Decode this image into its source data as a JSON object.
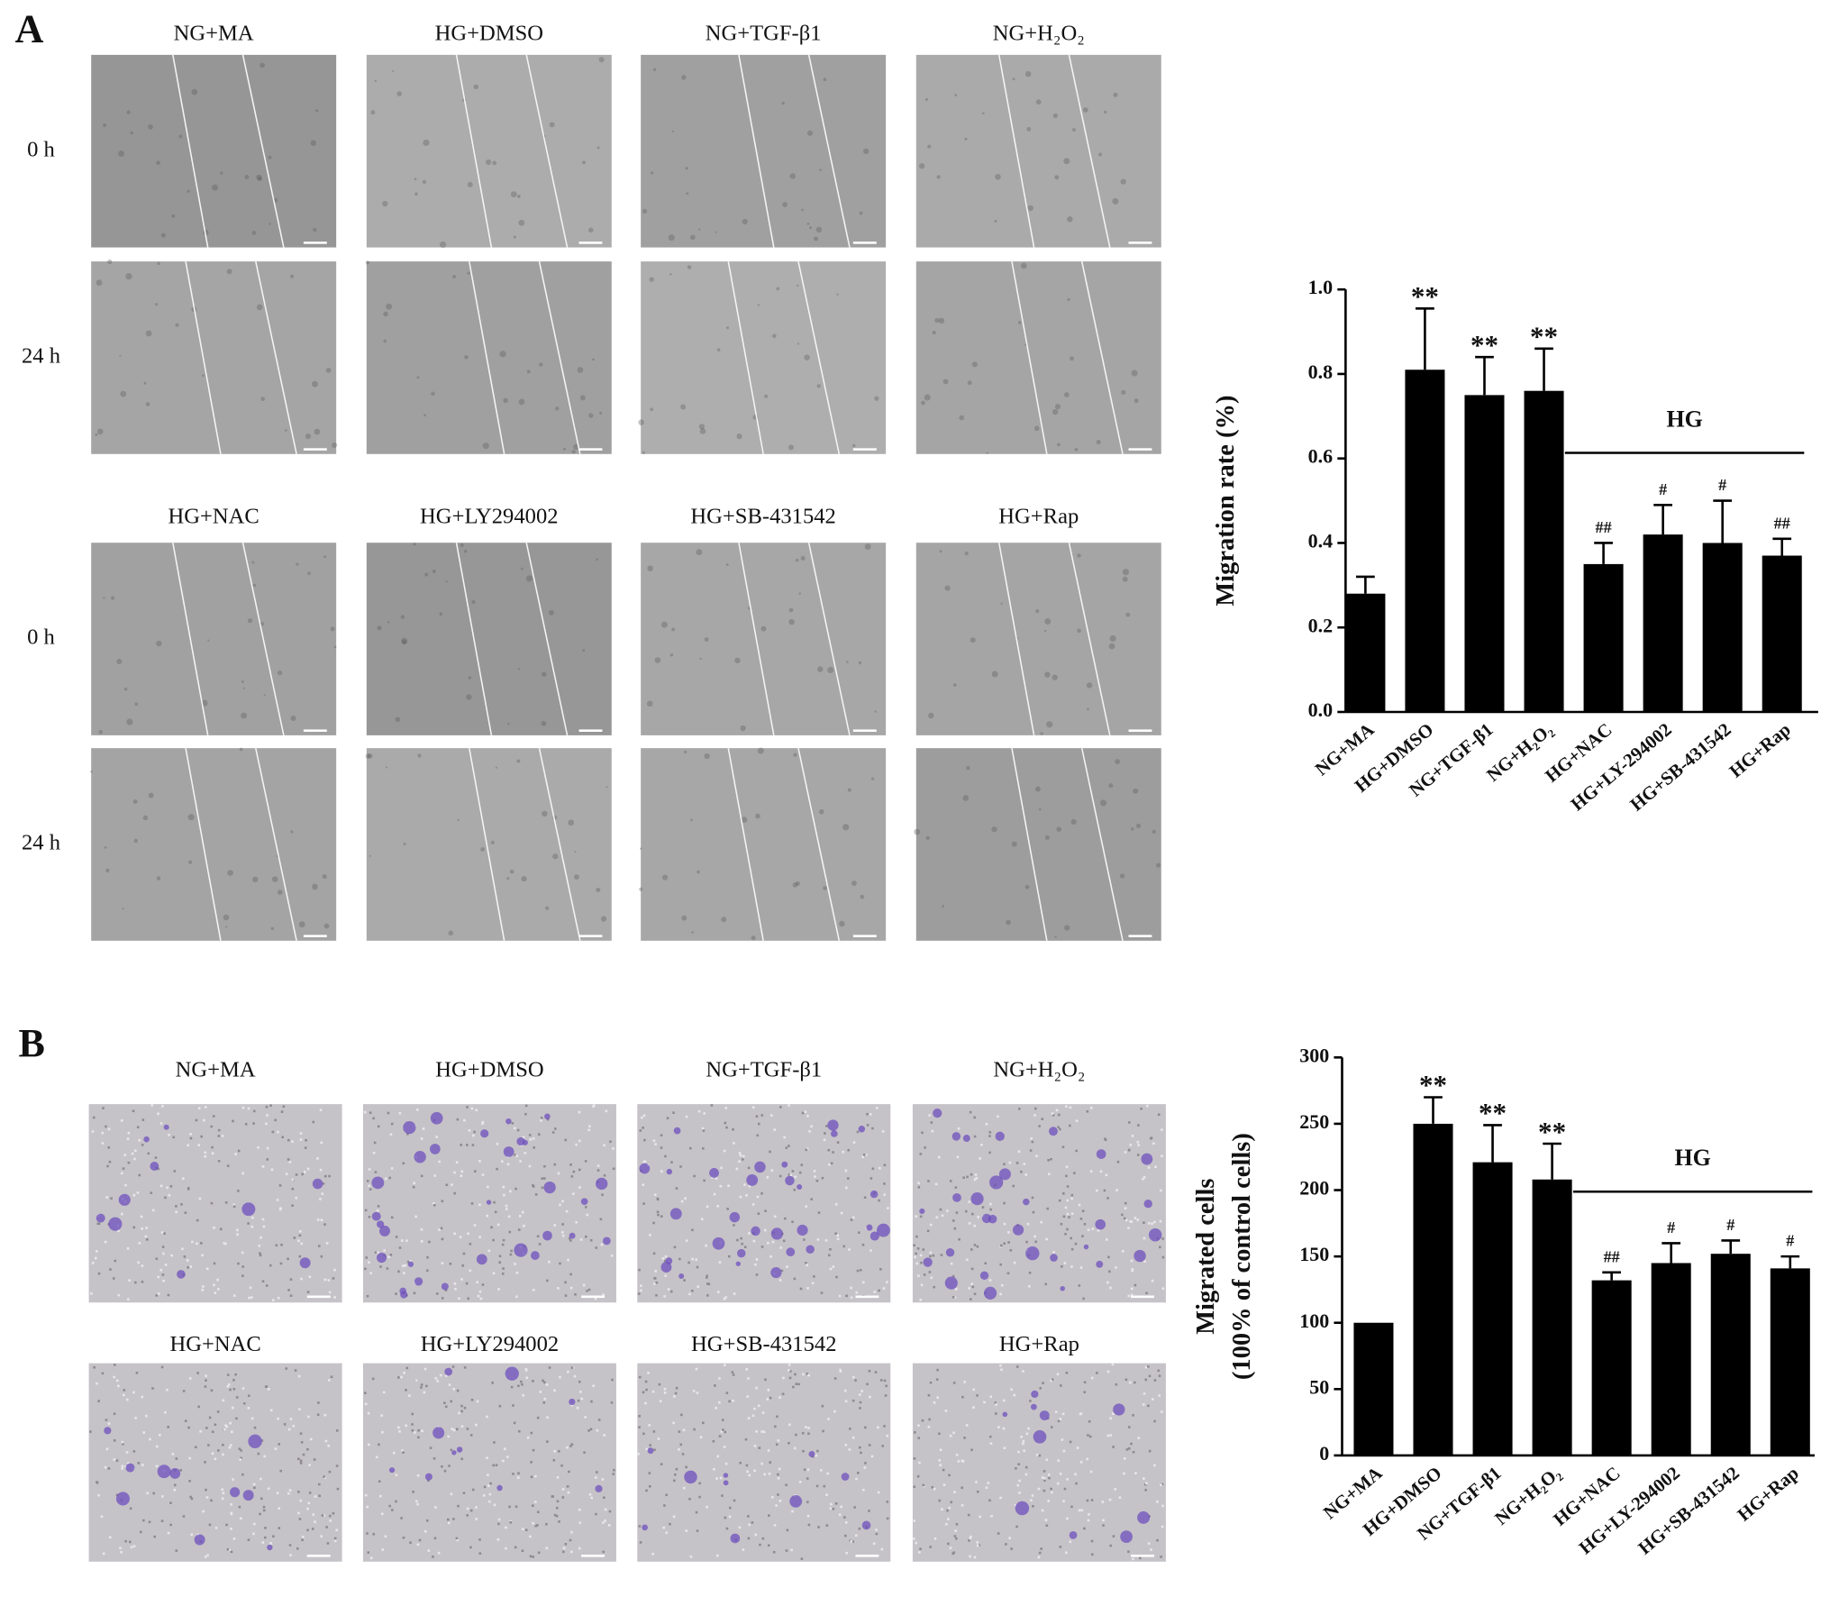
{
  "panel_a": {
    "label": "A",
    "blocks": [
      {
        "columns": [
          "NG+MA",
          "HG+DMSO",
          "NG+TGF-β1",
          "NG+H₂O₂"
        ],
        "rows": [
          "0 h",
          "24 h"
        ]
      },
      {
        "columns": [
          "HG+NAC",
          "HG+LY294002",
          "HG+SB-431542",
          "HG+Rap"
        ],
        "rows": [
          "0 h",
          "24 h"
        ]
      }
    ]
  },
  "panel_b": {
    "label": "B",
    "rows": [
      [
        "NG+MA",
        "HG+DMSO",
        "NG+TGF-β1",
        "NG+H₂O₂"
      ],
      [
        "HG+NAC",
        "HG+LY294002",
        "HG+SB-431542",
        "HG+Rap"
      ]
    ]
  },
  "chart_data": [
    {
      "type": "bar",
      "ylabel": [
        "Migration rate (%)"
      ],
      "categories": [
        "NG+MA",
        "HG+DMSO",
        "NG+TGF-β1",
        "NG+H₂O₂",
        "HG+NAC",
        "HG+LY-294002",
        "HG+SB-431542",
        "HG+Rap"
      ],
      "values": [
        0.28,
        0.81,
        0.75,
        0.76,
        0.35,
        0.42,
        0.4,
        0.37
      ],
      "errors": [
        0.04,
        0.145,
        0.09,
        0.1,
        0.05,
        0.07,
        0.1,
        0.04
      ],
      "annotations": [
        null,
        "**",
        "**",
        "**",
        "##",
        "#",
        "#",
        "##"
      ],
      "group": {
        "label": "HG",
        "start": "HG+NAC",
        "end": "HG+Rap"
      },
      "color": "#000000",
      "ylim": [
        0,
        1.0
      ],
      "yticks": [
        {
          "value": 0,
          "label": "0.0"
        },
        0.2,
        0.4,
        0.6,
        0.8,
        {
          "value": 1,
          "label": "1.0"
        }
      ]
    },
    {
      "type": "bar",
      "ylabel": [
        "Migrated cells",
        "(100% of control cells)"
      ],
      "categories": [
        "NG+MA",
        "HG+DMSO",
        "NG+TGF-β1",
        "NG+H₂O₂",
        "HG+NAC",
        "HG+LY-294002",
        "HG+SB-431542",
        "HG+Rap"
      ],
      "values": [
        100,
        250,
        221,
        208,
        132,
        145,
        152,
        141
      ],
      "errors": [
        null,
        20,
        28,
        27,
        6,
        15,
        10,
        9
      ],
      "annotations": [
        null,
        "**",
        "**",
        "**",
        "##",
        "#",
        "#",
        "#"
      ],
      "group": {
        "label": "HG",
        "start": "HG+NAC",
        "end": "HG+Rap"
      },
      "color": "#000000",
      "ylim": [
        0,
        300
      ],
      "yticks": [
        0,
        50,
        100,
        150,
        200,
        250,
        300
      ]
    }
  ]
}
